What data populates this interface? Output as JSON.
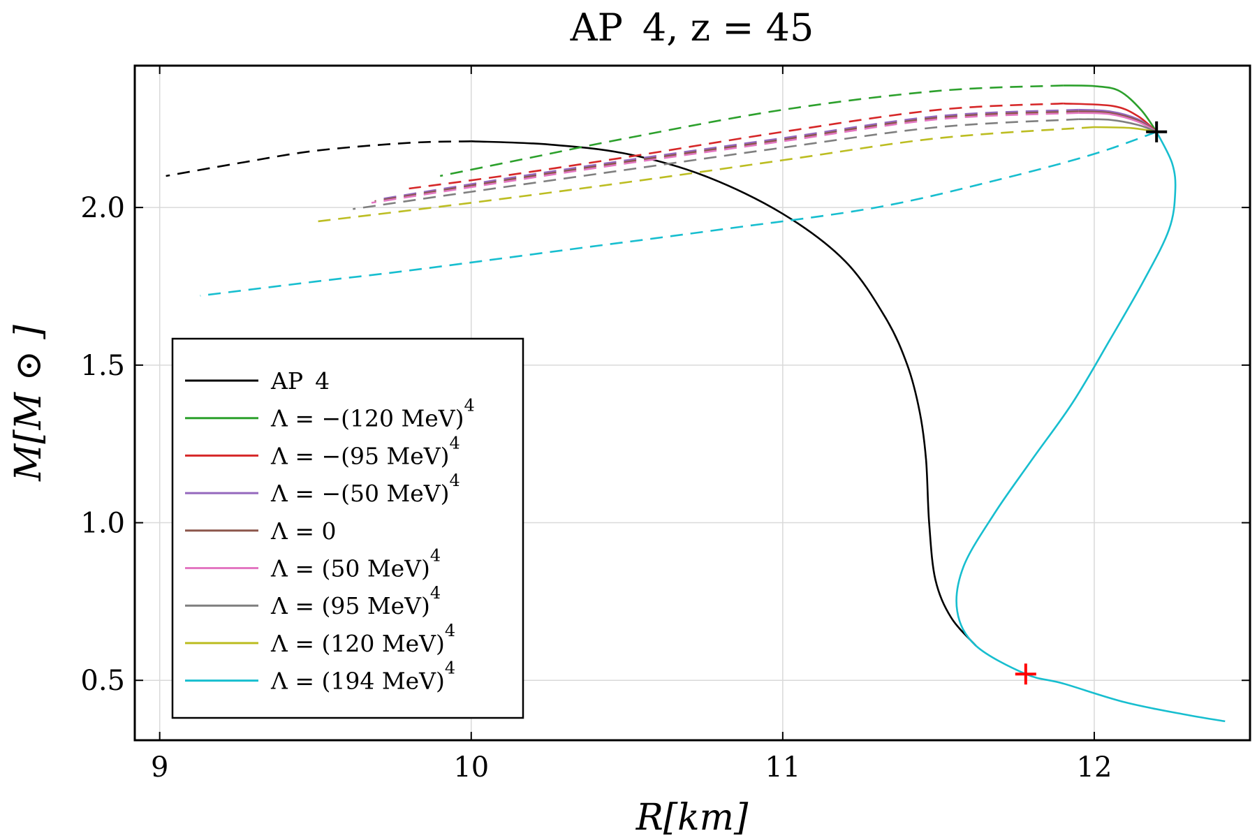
{
  "chart_data": {
    "type": "line",
    "title": "AP  4,  z = 45",
    "xlabel": "R[km]",
    "ylabel": "M[M ⊙ ]",
    "xlim": [
      8.92,
      12.5
    ],
    "ylim": [
      0.31,
      2.45
    ],
    "xticks": [
      9,
      10,
      11,
      12
    ],
    "xtick_labels": [
      "9",
      "10",
      "11",
      "12"
    ],
    "yticks": [
      0.5,
      1.0,
      1.5,
      2.0
    ],
    "ytick_labels": [
      "0.5",
      "1.0",
      "1.5",
      "2.0"
    ],
    "grid": true,
    "legend_position": "bottom-left",
    "series": [
      {
        "name": "AP4",
        "label": "AP  4",
        "color": "#000000",
        "solid": [
          [
            11.62,
            0.61
          ],
          [
            11.54,
            0.7
          ],
          [
            11.49,
            0.82
          ],
          [
            11.47,
            1.0
          ],
          [
            11.46,
            1.2
          ],
          [
            11.44,
            1.35
          ],
          [
            11.4,
            1.5
          ],
          [
            11.33,
            1.65
          ],
          [
            11.2,
            1.83
          ],
          [
            11.0,
            1.98
          ],
          [
            10.75,
            2.1
          ],
          [
            10.5,
            2.17
          ],
          [
            10.25,
            2.2
          ],
          [
            10.0,
            2.21
          ]
        ],
        "dashed": [
          [
            10.0,
            2.21
          ],
          [
            9.8,
            2.205
          ],
          [
            9.5,
            2.18
          ],
          [
            9.25,
            2.14
          ],
          [
            9.02,
            2.1
          ]
        ]
      },
      {
        "name": "Lambda=-(120MeV)^4",
        "label": "Λ = −(120 MeV)",
        "sup": "4",
        "color": "#2ca02c",
        "solid": [
          [
            12.2,
            2.24
          ],
          [
            12.15,
            2.31
          ],
          [
            12.08,
            2.37
          ],
          [
            12.0,
            2.385
          ],
          [
            11.9,
            2.387
          ]
        ],
        "dashed": [
          [
            11.9,
            2.387
          ],
          [
            11.5,
            2.37
          ],
          [
            11.0,
            2.31
          ],
          [
            10.5,
            2.22
          ],
          [
            10.2,
            2.16
          ],
          [
            9.9,
            2.1
          ]
        ]
      },
      {
        "name": "Lambda=-(95MeV)^4",
        "label": "Λ = −(95 MeV)",
        "sup": "4",
        "color": "#d62728",
        "solid": [
          [
            12.2,
            2.24
          ],
          [
            12.14,
            2.29
          ],
          [
            12.06,
            2.322
          ],
          [
            11.9,
            2.33
          ]
        ],
        "dashed": [
          [
            11.9,
            2.33
          ],
          [
            11.5,
            2.31
          ],
          [
            11.0,
            2.24
          ],
          [
            10.5,
            2.16
          ],
          [
            10.1,
            2.1
          ],
          [
            9.8,
            2.06
          ]
        ]
      },
      {
        "name": "Lambda=-(50MeV)^4",
        "label": "Λ = −(50 MeV)",
        "sup": "4",
        "color": "#9467bd",
        "solid": [
          [
            12.2,
            2.24
          ],
          [
            12.14,
            2.28
          ],
          [
            12.05,
            2.305
          ],
          [
            11.95,
            2.31
          ]
        ],
        "dashed": [
          [
            11.95,
            2.31
          ],
          [
            11.5,
            2.29
          ],
          [
            11.0,
            2.22
          ],
          [
            10.5,
            2.15
          ],
          [
            10.1,
            2.09
          ],
          [
            9.7,
            2.025
          ]
        ]
      },
      {
        "name": "Lambda=0",
        "label": "Λ = 0",
        "color": "#8c564b",
        "solid": [
          [
            12.2,
            2.24
          ],
          [
            12.14,
            2.276
          ],
          [
            12.05,
            2.3
          ],
          [
            11.95,
            2.305
          ]
        ],
        "dashed": [
          [
            11.95,
            2.305
          ],
          [
            11.5,
            2.285
          ],
          [
            11.0,
            2.215
          ],
          [
            10.5,
            2.145
          ],
          [
            10.1,
            2.085
          ],
          [
            9.69,
            2.02
          ]
        ]
      },
      {
        "name": "Lambda=(50MeV)^4",
        "label": "Λ = (50 MeV)",
        "sup": "4",
        "color": "#e377c2",
        "solid": [
          [
            12.2,
            2.24
          ],
          [
            12.14,
            2.272
          ],
          [
            12.05,
            2.296
          ],
          [
            11.95,
            2.3
          ]
        ],
        "dashed": [
          [
            11.95,
            2.3
          ],
          [
            11.5,
            2.28
          ],
          [
            11.0,
            2.21
          ],
          [
            10.5,
            2.14
          ],
          [
            10.1,
            2.08
          ],
          [
            9.68,
            2.015
          ]
        ]
      },
      {
        "name": "Lambda=(95MeV)^4",
        "label": "Λ = (95 MeV)",
        "sup": "4",
        "color": "#7f7f7f",
        "solid": [
          [
            12.2,
            2.24
          ],
          [
            12.14,
            2.262
          ],
          [
            12.05,
            2.278
          ],
          [
            11.95,
            2.28
          ]
        ],
        "dashed": [
          [
            11.95,
            2.28
          ],
          [
            11.5,
            2.255
          ],
          [
            11.0,
            2.19
          ],
          [
            10.5,
            2.12
          ],
          [
            10.0,
            2.05
          ],
          [
            9.62,
            1.995
          ]
        ]
      },
      {
        "name": "Lambda=(120MeV)^4",
        "label": "Λ = (120 MeV)",
        "sup": "4",
        "color": "#bcbd22",
        "solid": [
          [
            12.2,
            2.24
          ],
          [
            12.12,
            2.252
          ],
          [
            12.0,
            2.255
          ]
        ],
        "dashed": [
          [
            12.0,
            2.255
          ],
          [
            11.5,
            2.22
          ],
          [
            11.0,
            2.15
          ],
          [
            10.5,
            2.08
          ],
          [
            10.0,
            2.015
          ],
          [
            9.5,
            1.955
          ]
        ]
      },
      {
        "name": "Lambda=(194MeV)^4",
        "label": "Λ = (194 MeV)",
        "sup": "4",
        "color": "#17becf",
        "solid": [
          [
            12.42,
            0.37
          ],
          [
            12.3,
            0.39
          ],
          [
            12.1,
            0.43
          ],
          [
            11.9,
            0.49
          ],
          [
            11.78,
            0.52
          ],
          [
            11.62,
            0.61
          ],
          [
            11.56,
            0.72
          ],
          [
            11.58,
            0.86
          ],
          [
            11.68,
            1.03
          ],
          [
            11.8,
            1.2
          ],
          [
            11.93,
            1.38
          ],
          [
            12.05,
            1.58
          ],
          [
            12.16,
            1.77
          ],
          [
            12.24,
            1.93
          ],
          [
            12.26,
            2.05
          ],
          [
            12.25,
            2.14
          ],
          [
            12.2,
            2.24
          ]
        ],
        "dashed": [
          [
            12.2,
            2.24
          ],
          [
            12.0,
            2.17
          ],
          [
            11.7,
            2.09
          ],
          [
            11.3,
            2.0
          ],
          [
            10.8,
            1.93
          ],
          [
            10.3,
            1.865
          ],
          [
            9.8,
            1.8
          ],
          [
            9.5,
            1.765
          ],
          [
            9.13,
            1.72
          ]
        ]
      }
    ],
    "markers": [
      {
        "name": "max-mass-marker",
        "x": 12.2,
        "y": 2.24,
        "color": "#000000",
        "symbol": "+"
      },
      {
        "name": "transition-marker",
        "x": 11.78,
        "y": 0.52,
        "color": "#ff0000",
        "symbol": "+"
      }
    ]
  }
}
